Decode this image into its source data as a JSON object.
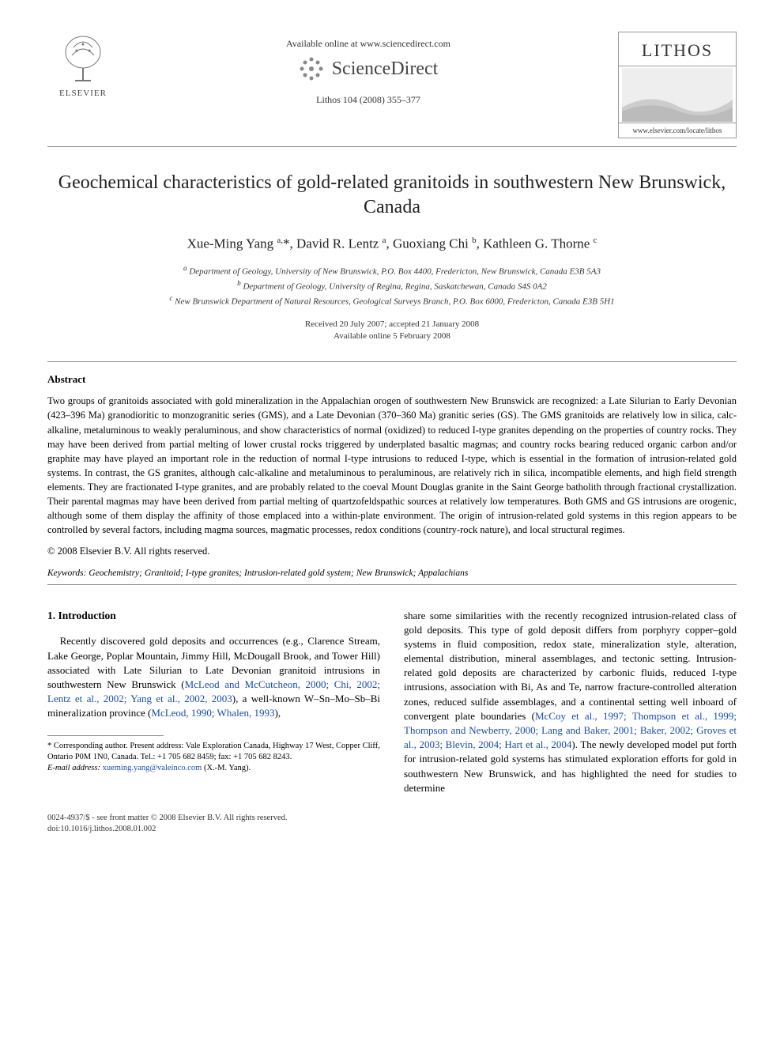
{
  "header": {
    "elsevier_label": "ELSEVIER",
    "available_online": "Available online at www.sciencedirect.com",
    "sciencedirect": "ScienceDirect",
    "journal_ref": "Lithos 104 (2008) 355–377",
    "lithos_title": "LITHOS",
    "lithos_url": "www.elsevier.com/locate/lithos"
  },
  "title": "Geochemical characteristics of gold-related granitoids in southwestern New Brunswick, Canada",
  "authors_html": "Xue-Ming Yang <sup>a,</sup>*, David R. Lentz <sup>a</sup>, Guoxiang Chi <sup>b</sup>, Kathleen G. Thorne <sup>c</sup>",
  "affiliations": {
    "a": "Department of Geology, University of New Brunswick, P.O. Box 4400, Fredericton, New Brunswick, Canada E3B 5A3",
    "b": "Department of Geology, University of Regina, Regina, Saskatchewan, Canada S4S 0A2",
    "c": "New Brunswick Department of Natural Resources, Geological Surveys Branch, P.O. Box 6000, Fredericton, Canada E3B 5H1"
  },
  "dates": {
    "received_accepted": "Received 20 July 2007; accepted 21 January 2008",
    "available": "Available online 5 February 2008"
  },
  "abstract": {
    "heading": "Abstract",
    "body": "Two groups of granitoids associated with gold mineralization in the Appalachian orogen of southwestern New Brunswick are recognized: a Late Silurian to Early Devonian (423–396 Ma) granodioritic to monzogranitic series (GMS), and a Late Devonian (370–360 Ma) granitic series (GS). The GMS granitoids are relatively low in silica, calc-alkaline, metaluminous to weakly peraluminous, and show characteristics of normal (oxidized) to reduced I-type granites depending on the properties of country rocks. They may have been derived from partial melting of lower crustal rocks triggered by underplated basaltic magmas; and country rocks bearing reduced organic carbon and/or graphite may have played an important role in the reduction of normal I-type intrusions to reduced I-type, which is essential in the formation of intrusion-related gold systems. In contrast, the GS granites, although calc-alkaline and metaluminous to peraluminous, are relatively rich in silica, incompatible elements, and high field strength elements. They are fractionated I-type granites, and are probably related to the coeval Mount Douglas granite in the Saint George batholith through fractional crystallization. Their parental magmas may have been derived from partial melting of quartzofeldspathic sources at relatively low temperatures. Both GMS and GS intrusions are orogenic, although some of them display the affinity of those emplaced into a within-plate environment. The origin of intrusion-related gold systems in this region appears to be controlled by several factors, including magma sources, magmatic processes, redox conditions (country-rock nature), and local structural regimes.",
    "copyright": "© 2008 Elsevier B.V. All rights reserved."
  },
  "keywords_label": "Keywords:",
  "keywords": "Geochemistry; Granitoid; I-type granites; Intrusion-related gold system; New Brunswick; Appalachians",
  "section1": {
    "heading": "1. Introduction",
    "col1_pre": "Recently discovered gold deposits and occurrences (e.g., Clarence Stream, Lake George, Poplar Mountain, Jimmy Hill, McDougall Brook, and Tower Hill) associated with Late Silurian to Late Devonian granitoid intrusions in southwestern New Brunswick (",
    "col1_link1": "McLeod and McCutcheon, 2000; Chi, 2002; Lentz et al., 2002; Yang et al., 2002, 2003",
    "col1_mid": "), a well-known W–Sn–Mo–Sb–Bi mineralization province (",
    "col1_link2": "McLeod, 1990; Whalen, 1993",
    "col1_post": "),",
    "col2_pre": "share some similarities with the recently recognized intrusion-related class of gold deposits. This type of gold deposit differs from porphyry copper–gold systems in fluid composition, redox state, mineralization style, alteration, elemental distribution, mineral assemblages, and tectonic setting. Intrusion-related gold deposits are characterized by carbonic fluids, reduced I-type intrusions, association with Bi, As and Te, narrow fracture-controlled alteration zones, reduced sulfide assemblages, and a continental setting well inboard of convergent plate boundaries (",
    "col2_link": "McCoy et al., 1997; Thompson et al., 1999; Thompson and Newberry, 2000; Lang and Baker, 2001; Baker, 2002; Groves et al., 2003; Blevin, 2004; Hart et al., 2004",
    "col2_post": "). The newly developed model put forth for intrusion-related gold systems has stimulated exploration efforts for gold in southwestern New Brunswick, and has highlighted the need for studies to determine"
  },
  "footnote": {
    "corresponding": "* Corresponding author. Present address: Vale Exploration Canada, Highway 17 West, Copper Cliff, Ontario P0M 1N0, Canada. Tel.: +1 705 682 8459; fax: +1 705 682 8243.",
    "email_label": "E-mail address:",
    "email": "xueming.yang@valeinco.com",
    "email_who": "(X.-M. Yang)."
  },
  "footer": {
    "line1": "0024-4937/$ - see front matter © 2008 Elsevier B.V. All rights reserved.",
    "line2": "doi:10.1016/j.lithos.2008.01.002"
  },
  "colors": {
    "link": "#1a4ba8",
    "text": "#000000",
    "rule": "#888888"
  }
}
